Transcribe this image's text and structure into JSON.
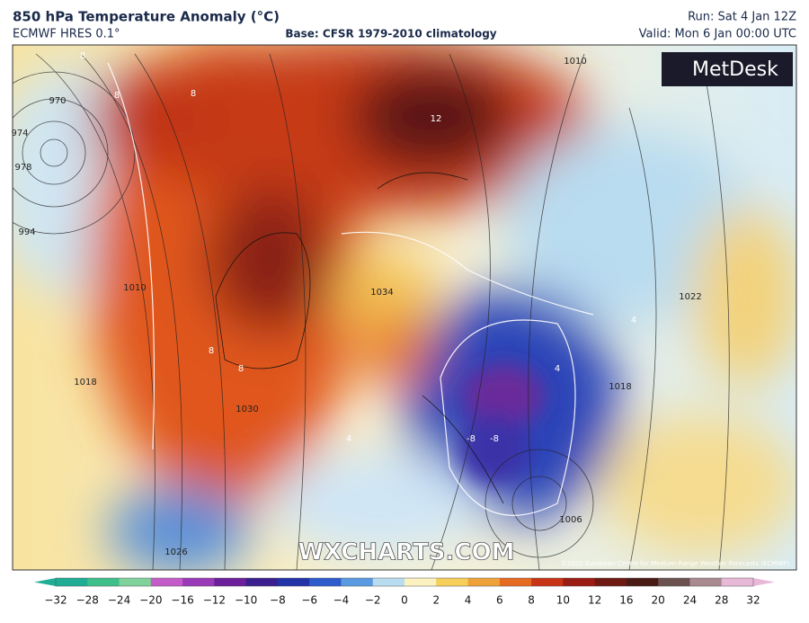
{
  "header": {
    "title": "850 hPa Temperature Anomaly (°C)",
    "model": "ECMWF HRES 0.1°",
    "base": "Base: CFSR 1979-2010 climatology",
    "run": "Run: Sat 4 Jan 12Z",
    "valid": "Valid: Mon 6 Jan 00:00 UTC"
  },
  "logo": "MetDesk",
  "watermark": "WXCHARTS.COM",
  "copyright": "©2020 European Centre for Medium-Range Weather Forecasts (ECMWF)",
  "map": {
    "labels": [
      "8",
      "12",
      "8",
      "8",
      "970",
      "974",
      "978",
      "994",
      "1010",
      "1018",
      "1010",
      "1022",
      "1018",
      "1006",
      "1026",
      "1030",
      "8",
      "8",
      "4",
      "-8",
      "-8",
      "4",
      "4",
      "1034"
    ]
  },
  "colorbar": {
    "ticks": [
      "−32",
      "−28",
      "−24",
      "−20",
      "−16",
      "−12",
      "−10",
      "−8",
      "−6",
      "−4",
      "−2",
      "0",
      "2",
      "4",
      "6",
      "8",
      "10",
      "12",
      "16",
      "20",
      "24",
      "28",
      "32"
    ],
    "colors": [
      "#1fae95",
      "#3fc08a",
      "#7fd29a",
      "#c35bc8",
      "#9a3ab8",
      "#6b1f9a",
      "#3b1f8e",
      "#2233a8",
      "#2f5ccc",
      "#5a9ae0",
      "#b8dcf0",
      "#fbf2c0",
      "#f5cf5a",
      "#f0a23a",
      "#e56a22",
      "#c83418",
      "#9a1c12",
      "#6e1a12",
      "#4a1a14",
      "#6b5250",
      "#a98a90",
      "#e8b8d8"
    ]
  }
}
